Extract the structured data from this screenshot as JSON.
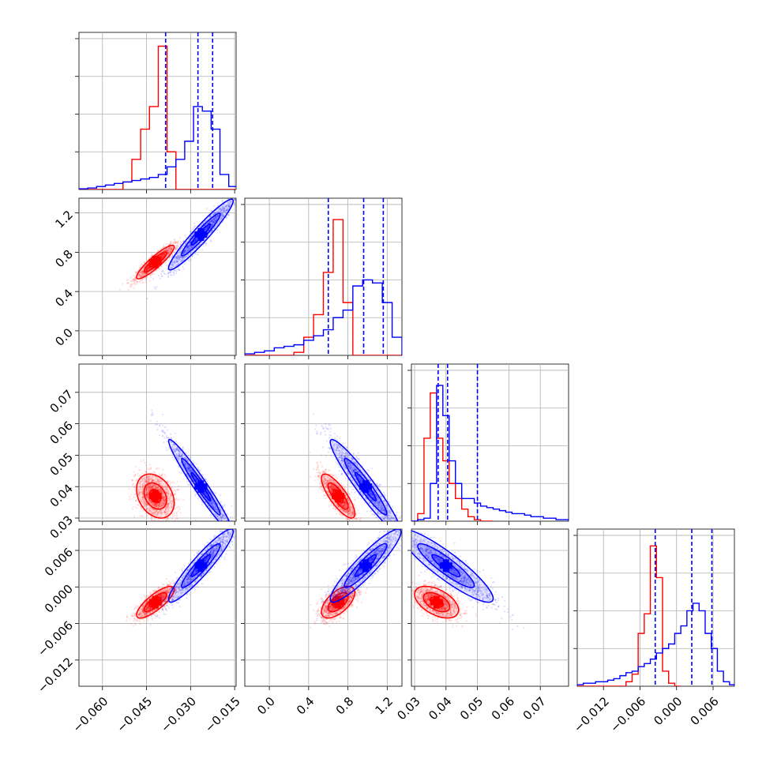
{
  "chart_data": {
    "type": "corner",
    "title": "",
    "parameters": [
      {
        "index": 0,
        "range": [
          -0.068,
          -0.0145
        ],
        "ticks": [
          -0.06,
          -0.045,
          -0.03,
          -0.015
        ],
        "tick_labels": [
          "−0.060",
          "−0.045",
          "−0.030",
          "−0.015"
        ]
      },
      {
        "index": 1,
        "range": [
          -0.25,
          1.35
        ],
        "ticks": [
          0.0,
          0.4,
          0.8,
          1.2
        ],
        "tick_labels": [
          "0.0",
          "0.4",
          "0.8",
          "1.2"
        ]
      },
      {
        "index": 2,
        "range": [
          0.029,
          0.079
        ],
        "ticks": [
          0.03,
          0.04,
          0.05,
          0.06,
          0.07
        ],
        "tick_labels": [
          "0.03",
          "0.04",
          "0.05",
          "0.06",
          "0.07"
        ]
      },
      {
        "index": 3,
        "range": [
          -0.0163,
          0.0095
        ],
        "ticks": [
          -0.012,
          -0.006,
          0.0,
          0.006
        ],
        "tick_labels": [
          "−0.012",
          "−0.006",
          "0.000",
          "0.006"
        ]
      }
    ],
    "series": [
      {
        "color": "#ff0000",
        "means": [
          -0.042,
          0.7,
          0.037,
          -0.0025
        ],
        "sigmas": [
          0.0032,
          0.085,
          0.0035,
          0.0013
        ],
        "correlations": [
          [
            0,
            1,
            0.9
          ],
          [
            0,
            2,
            -0.3
          ],
          [
            0,
            3,
            0.8
          ],
          [
            1,
            2,
            -0.8
          ],
          [
            1,
            3,
            0.6
          ],
          [
            2,
            3,
            -0.5
          ]
        ],
        "n_samples": 1500,
        "histograms": [
          {
            "edges": [
              -0.068,
              -0.065,
              -0.062,
              -0.059,
              -0.056,
              -0.053,
              -0.05,
              -0.047,
              -0.044,
              -0.041,
              -0.038,
              -0.035,
              -0.032,
              -0.029,
              -0.026,
              -0.023,
              -0.02,
              -0.017,
              -0.014
            ],
            "counts": [
              0,
              0,
              0,
              0,
              0,
              0.05,
              0.2,
              0.4,
              0.55,
              0.95,
              0.25,
              0,
              0,
              0,
              0,
              0,
              0,
              0
            ]
          },
          {
            "edges": [
              -0.25,
              -0.15,
              -0.05,
              0.05,
              0.15,
              0.25,
              0.35,
              0.45,
              0.55,
              0.65,
              0.75,
              0.85,
              0.95,
              1.05,
              1.15,
              1.25,
              1.35
            ],
            "counts": [
              0,
              0,
              0,
              0,
              0,
              0.02,
              0.12,
              0.27,
              0.55,
              0.9,
              0.35,
              0,
              0,
              0,
              0,
              0
            ]
          },
          {
            "edges": [
              0.029,
              0.031,
              0.033,
              0.035,
              0.037,
              0.039,
              0.041,
              0.043,
              0.045,
              0.047,
              0.049,
              0.051,
              0.053,
              0.055
            ],
            "counts": [
              0,
              0.05,
              0.55,
              0.85,
              0.55,
              0.4,
              0.25,
              0.15,
              0.08,
              0.03,
              0.01,
              0,
              0
            ]
          },
          {
            "edges": [
              -0.0163,
              -0.0153,
              -0.0143,
              -0.0133,
              -0.0123,
              -0.0113,
              -0.0103,
              -0.0093,
              -0.0083,
              -0.0073,
              -0.0063,
              -0.0053,
              -0.0043,
              -0.0033,
              -0.0023,
              -0.0013,
              -0.0003,
              0.0007
            ],
            "counts": [
              0,
              0,
              0,
              0,
              0,
              0,
              0,
              0,
              0.03,
              0.08,
              0.35,
              0.48,
              0.93,
              0.72,
              0.1,
              0.02,
              0
            ]
          }
        ]
      },
      {
        "color": "#0000ff",
        "means": [
          -0.0265,
          0.98,
          0.04,
          0.0035
        ],
        "sigmas": [
          0.0055,
          0.18,
          0.0075,
          0.003
        ],
        "correlations": [
          [
            0,
            1,
            0.95
          ],
          [
            0,
            2,
            -0.97
          ],
          [
            0,
            3,
            0.93
          ],
          [
            1,
            2,
            -0.95
          ],
          [
            1,
            3,
            0.92
          ],
          [
            2,
            3,
            -0.9
          ]
        ],
        "n_samples": 1500,
        "histograms": [
          {
            "edges": [
              -0.068,
              -0.065,
              -0.062,
              -0.059,
              -0.056,
              -0.053,
              -0.05,
              -0.047,
              -0.044,
              -0.041,
              -0.038,
              -0.035,
              -0.032,
              -0.029,
              -0.026,
              -0.023,
              -0.02,
              -0.017,
              -0.014
            ],
            "counts": [
              0.005,
              0.01,
              0.02,
              0.03,
              0.04,
              0.05,
              0.06,
              0.07,
              0.08,
              0.1,
              0.15,
              0.2,
              0.32,
              0.55,
              0.52,
              0.4,
              0.1,
              0.02
            ]
          },
          {
            "edges": [
              -0.25,
              -0.15,
              -0.05,
              0.05,
              0.15,
              0.25,
              0.35,
              0.45,
              0.55,
              0.65,
              0.75,
              0.85,
              0.95,
              1.05,
              1.15,
              1.25,
              1.35
            ],
            "counts": [
              0.01,
              0.02,
              0.03,
              0.05,
              0.06,
              0.07,
              0.1,
              0.13,
              0.17,
              0.25,
              0.3,
              0.46,
              0.5,
              0.48,
              0.35,
              0.12
            ]
          },
          {
            "edges": [
              0.029,
              0.031,
              0.033,
              0.035,
              0.037,
              0.039,
              0.041,
              0.043,
              0.045,
              0.047,
              0.049,
              0.051,
              0.053,
              0.055,
              0.057,
              0.059,
              0.061,
              0.063,
              0.065,
              0.067,
              0.069,
              0.071,
              0.073,
              0.075,
              0.077,
              0.079
            ],
            "counts": [
              0,
              0.01,
              0.02,
              0.25,
              0.9,
              0.7,
              0.4,
              0.25,
              0.15,
              0.15,
              0.12,
              0.1,
              0.09,
              0.08,
              0.07,
              0.06,
              0.05,
              0.05,
              0.04,
              0.03,
              0.03,
              0.02,
              0.02,
              0.01,
              0.01
            ]
          },
          {
            "edges": [
              -0.0163,
              -0.0153,
              -0.0143,
              -0.0133,
              -0.0123,
              -0.0113,
              -0.0103,
              -0.0093,
              -0.0083,
              -0.0073,
              -0.0063,
              -0.0053,
              -0.0043,
              -0.0033,
              -0.0023,
              -0.0013,
              -0.0003,
              0.0007,
              0.0017,
              0.0027,
              0.0037,
              0.0047,
              0.0057,
              0.0067,
              0.0077,
              0.0087,
              0.0095
            ],
            "counts": [
              0.01,
              0.02,
              0.02,
              0.03,
              0.03,
              0.04,
              0.05,
              0.07,
              0.09,
              0.1,
              0.13,
              0.15,
              0.18,
              0.22,
              0.25,
              0.28,
              0.35,
              0.4,
              0.5,
              0.55,
              0.5,
              0.35,
              0.25,
              0.1,
              0.03,
              0.01
            ]
          }
        ]
      }
    ],
    "quantile_lines": {
      "color": "#0000ff",
      "style": "dashed",
      "values": [
        [
          -0.0385,
          -0.0275,
          -0.0225
        ],
        [
          0.6,
          0.96,
          1.16
        ],
        [
          0.0375,
          0.0405,
          0.05
        ],
        [
          -0.0035,
          0.0025,
          0.0058
        ]
      ]
    },
    "grid": true,
    "legend": "none"
  }
}
